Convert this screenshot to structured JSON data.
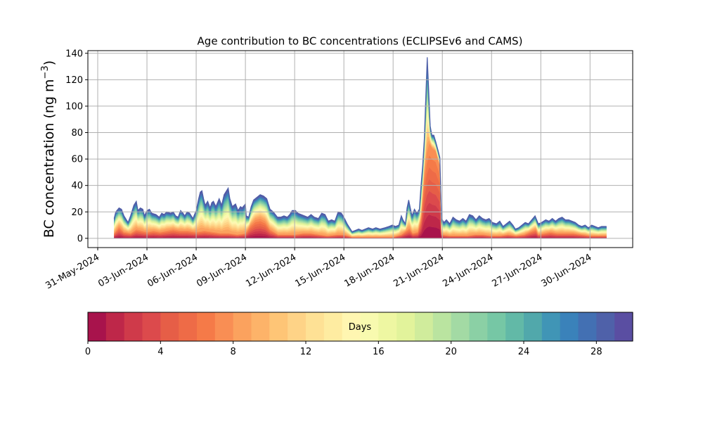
{
  "chart_data": {
    "type": "area",
    "title": "Age contribution to BC concentrations (ECLIPSEv6 and CAMS)",
    "ylabel": "BC concentration (ng m",
    "ylabel_sup": "−3",
    "ylabel_close": ")",
    "xlabel": "",
    "ylim": [
      -7,
      142
    ],
    "xlim": [
      -0.6,
      32.6
    ],
    "grid": true,
    "yticks": [
      0,
      20,
      40,
      60,
      80,
      100,
      120,
      140
    ],
    "xticks": [
      {
        "day": 0,
        "label": "31-May-2024"
      },
      {
        "day": 3,
        "label": "03-Jun-2024"
      },
      {
        "day": 6,
        "label": "06-Jun-2024"
      },
      {
        "day": 9,
        "label": "09-Jun-2024"
      },
      {
        "day": 12,
        "label": "12-Jun-2024"
      },
      {
        "day": 15,
        "label": "15-Jun-2024"
      },
      {
        "day": 18,
        "label": "18-Jun-2024"
      },
      {
        "day": 21,
        "label": "21-Jun-2024"
      },
      {
        "day": 24,
        "label": "24-Jun-2024"
      },
      {
        "day": 27,
        "label": "27-Jun-2024"
      },
      {
        "day": 30,
        "label": "30-Jun-2024"
      }
    ],
    "series_note": "stacked contributions by age 0-30 days; x in days since 31-May-2024, y = total / young (0-8 day) contribution",
    "total": [
      [
        1.0,
        15
      ],
      [
        1.1,
        20
      ],
      [
        1.3,
        23
      ],
      [
        1.45,
        22
      ],
      [
        1.6,
        17
      ],
      [
        1.85,
        12
      ],
      [
        2.0,
        17
      ],
      [
        2.2,
        25
      ],
      [
        2.35,
        28
      ],
      [
        2.45,
        21
      ],
      [
        2.6,
        23
      ],
      [
        2.75,
        22
      ],
      [
        2.85,
        17
      ],
      [
        3.0,
        21
      ],
      [
        3.15,
        22
      ],
      [
        3.3,
        19
      ],
      [
        3.55,
        18
      ],
      [
        3.75,
        16
      ],
      [
        3.9,
        19
      ],
      [
        4.05,
        18
      ],
      [
        4.2,
        20
      ],
      [
        4.45,
        19
      ],
      [
        4.6,
        20
      ],
      [
        4.75,
        17
      ],
      [
        4.9,
        16
      ],
      [
        5.05,
        21
      ],
      [
        5.2,
        19
      ],
      [
        5.3,
        17
      ],
      [
        5.45,
        20
      ],
      [
        5.6,
        19
      ],
      [
        5.8,
        15
      ],
      [
        6.0,
        21
      ],
      [
        6.15,
        30
      ],
      [
        6.25,
        35
      ],
      [
        6.35,
        36
      ],
      [
        6.45,
        30
      ],
      [
        6.55,
        25
      ],
      [
        6.7,
        28
      ],
      [
        6.85,
        23
      ],
      [
        6.95,
        27
      ],
      [
        7.05,
        28
      ],
      [
        7.2,
        24
      ],
      [
        7.4,
        30
      ],
      [
        7.55,
        25
      ],
      [
        7.7,
        33
      ],
      [
        7.85,
        36
      ],
      [
        7.95,
        38
      ],
      [
        8.05,
        30
      ],
      [
        8.2,
        24
      ],
      [
        8.4,
        26
      ],
      [
        8.55,
        21
      ],
      [
        8.7,
        24
      ],
      [
        8.8,
        23
      ],
      [
        9.0,
        26
      ],
      [
        9.05,
        17
      ],
      [
        9.2,
        16
      ],
      [
        9.35,
        24
      ],
      [
        9.5,
        29
      ],
      [
        9.7,
        31
      ],
      [
        9.9,
        33
      ],
      [
        10.1,
        32
      ],
      [
        10.3,
        30
      ],
      [
        10.5,
        22
      ],
      [
        10.7,
        20
      ],
      [
        10.95,
        16
      ],
      [
        11.15,
        16
      ],
      [
        11.35,
        17
      ],
      [
        11.55,
        16
      ],
      [
        11.7,
        18
      ],
      [
        11.85,
        21
      ],
      [
        12.05,
        21
      ],
      [
        12.2,
        19
      ],
      [
        12.4,
        18
      ],
      [
        12.6,
        17
      ],
      [
        12.8,
        16
      ],
      [
        13.0,
        18
      ],
      [
        13.2,
        16
      ],
      [
        13.45,
        15
      ],
      [
        13.65,
        19
      ],
      [
        13.85,
        18
      ],
      [
        14.05,
        13
      ],
      [
        14.25,
        14
      ],
      [
        14.45,
        13
      ],
      [
        14.65,
        20
      ],
      [
        14.85,
        19
      ],
      [
        15.0,
        16
      ],
      [
        15.2,
        11
      ],
      [
        15.35,
        8
      ],
      [
        15.5,
        5
      ],
      [
        15.7,
        6
      ],
      [
        15.9,
        7
      ],
      [
        16.1,
        6
      ],
      [
        16.3,
        7
      ],
      [
        16.5,
        8
      ],
      [
        16.75,
        7
      ],
      [
        16.95,
        8
      ],
      [
        17.2,
        7
      ],
      [
        17.5,
        8
      ],
      [
        17.75,
        9
      ],
      [
        17.95,
        10
      ],
      [
        18.15,
        9
      ],
      [
        18.35,
        10
      ],
      [
        18.5,
        17
      ],
      [
        18.6,
        14
      ],
      [
        18.75,
        11
      ],
      [
        18.85,
        23
      ],
      [
        18.95,
        29
      ],
      [
        19.05,
        23
      ],
      [
        19.15,
        17
      ],
      [
        19.3,
        22
      ],
      [
        19.45,
        19
      ],
      [
        19.6,
        22
      ],
      [
        19.7,
        40
      ],
      [
        19.8,
        55
      ],
      [
        19.9,
        75
      ],
      [
        20.0,
        110
      ],
      [
        20.08,
        137
      ],
      [
        20.16,
        115
      ],
      [
        20.26,
        85
      ],
      [
        20.36,
        78
      ],
      [
        20.48,
        78
      ],
      [
        20.6,
        73
      ],
      [
        20.75,
        66
      ],
      [
        20.85,
        61
      ],
      [
        20.95,
        15
      ],
      [
        21.1,
        12
      ],
      [
        21.25,
        14
      ],
      [
        21.45,
        11
      ],
      [
        21.65,
        16
      ],
      [
        21.85,
        14
      ],
      [
        22.05,
        13
      ],
      [
        22.25,
        15
      ],
      [
        22.45,
        13
      ],
      [
        22.65,
        18
      ],
      [
        22.85,
        17
      ],
      [
        23.05,
        14
      ],
      [
        23.25,
        17
      ],
      [
        23.45,
        15
      ],
      [
        23.65,
        14
      ],
      [
        23.85,
        15
      ],
      [
        24.05,
        12
      ],
      [
        24.3,
        11
      ],
      [
        24.5,
        13
      ],
      [
        24.7,
        9
      ],
      [
        24.9,
        11
      ],
      [
        25.1,
        13
      ],
      [
        25.3,
        10
      ],
      [
        25.45,
        7
      ],
      [
        25.65,
        8
      ],
      [
        25.85,
        10
      ],
      [
        26.05,
        12
      ],
      [
        26.25,
        11
      ],
      [
        26.45,
        14
      ],
      [
        26.65,
        17
      ],
      [
        26.85,
        11
      ],
      [
        27.05,
        12
      ],
      [
        27.3,
        14
      ],
      [
        27.5,
        13
      ],
      [
        27.7,
        15
      ],
      [
        27.9,
        13
      ],
      [
        28.1,
        15
      ],
      [
        28.3,
        16
      ],
      [
        28.5,
        14
      ],
      [
        28.7,
        14
      ],
      [
        28.9,
        13
      ],
      [
        29.1,
        12
      ],
      [
        29.3,
        10
      ],
      [
        29.5,
        9
      ],
      [
        29.7,
        10
      ],
      [
        29.9,
        8
      ],
      [
        30.1,
        10
      ],
      [
        30.3,
        9
      ],
      [
        30.5,
        8
      ],
      [
        30.7,
        9
      ],
      [
        31.0,
        9
      ]
    ],
    "young": [
      [
        1.0,
        4
      ],
      [
        1.3,
        9
      ],
      [
        1.6,
        5
      ],
      [
        2.0,
        4
      ],
      [
        2.35,
        7
      ],
      [
        2.7,
        6
      ],
      [
        3.0,
        5
      ],
      [
        3.4,
        6
      ],
      [
        3.8,
        5
      ],
      [
        4.2,
        6
      ],
      [
        4.6,
        7
      ],
      [
        5.0,
        6
      ],
      [
        5.5,
        6
      ],
      [
        6.0,
        5
      ],
      [
        6.5,
        6
      ],
      [
        7.0,
        5
      ],
      [
        7.5,
        4
      ],
      [
        8.0,
        4
      ],
      [
        8.5,
        3
      ],
      [
        9.0,
        4
      ],
      [
        9.3,
        10
      ],
      [
        9.6,
        14
      ],
      [
        9.9,
        15
      ],
      [
        10.2,
        13
      ],
      [
        10.5,
        7
      ],
      [
        11.0,
        3
      ],
      [
        11.5,
        3
      ],
      [
        12.0,
        3
      ],
      [
        12.5,
        4
      ],
      [
        13.0,
        4
      ],
      [
        13.5,
        3
      ],
      [
        14.0,
        2
      ],
      [
        14.6,
        3
      ],
      [
        15.0,
        3
      ],
      [
        15.5,
        1
      ],
      [
        16.0,
        1
      ],
      [
        16.5,
        1
      ],
      [
        17.0,
        1
      ],
      [
        17.5,
        1
      ],
      [
        18.0,
        1
      ],
      [
        18.5,
        3
      ],
      [
        18.8,
        6
      ],
      [
        19.0,
        8
      ],
      [
        19.2,
        4
      ],
      [
        19.5,
        5
      ],
      [
        19.7,
        15
      ],
      [
        19.9,
        50
      ],
      [
        20.05,
        65
      ],
      [
        20.2,
        72
      ],
      [
        20.4,
        68
      ],
      [
        20.6,
        66
      ],
      [
        20.85,
        55
      ],
      [
        20.95,
        3
      ],
      [
        21.5,
        2
      ],
      [
        22.0,
        2
      ],
      [
        22.5,
        2
      ],
      [
        23.0,
        3
      ],
      [
        23.5,
        3
      ],
      [
        24.0,
        2
      ],
      [
        24.5,
        2
      ],
      [
        25.0,
        3
      ],
      [
        25.5,
        2
      ],
      [
        26.0,
        3
      ],
      [
        26.5,
        6
      ],
      [
        26.7,
        7
      ],
      [
        26.85,
        3
      ],
      [
        27.2,
        4
      ],
      [
        27.6,
        5
      ],
      [
        28.0,
        4
      ],
      [
        28.5,
        4
      ],
      [
        29.0,
        4
      ],
      [
        29.5,
        3
      ],
      [
        30.0,
        2
      ],
      [
        30.5,
        2
      ],
      [
        31.0,
        2
      ]
    ],
    "colorbar": {
      "label": "Days",
      "min": 0,
      "max": 30,
      "ticks": [
        "0",
        "4",
        "8",
        "12",
        "16",
        "20",
        "24",
        "28"
      ],
      "tick_values": [
        0,
        4,
        8,
        12,
        16,
        20,
        24,
        28
      ],
      "colors": [
        "#a8134c",
        "#be2749",
        "#cf3a4a",
        "#dc4a4c",
        "#e65e47",
        "#ee6b47",
        "#f57a48",
        "#f98e54",
        "#fba25e",
        "#fdb369",
        "#fec576",
        "#fed387",
        "#fee195",
        "#feeca1",
        "#fff6b1",
        "#f8faaf",
        "#eef7a2",
        "#e2f39b",
        "#d0ec9c",
        "#bae4a0",
        "#a3daa4",
        "#8bd0a5",
        "#76c7a5",
        "#62b9a7",
        "#51a8ab",
        "#4095b6",
        "#3a82ba",
        "#4370b3",
        "#4f61a9",
        "#5a4ea2"
      ]
    }
  }
}
